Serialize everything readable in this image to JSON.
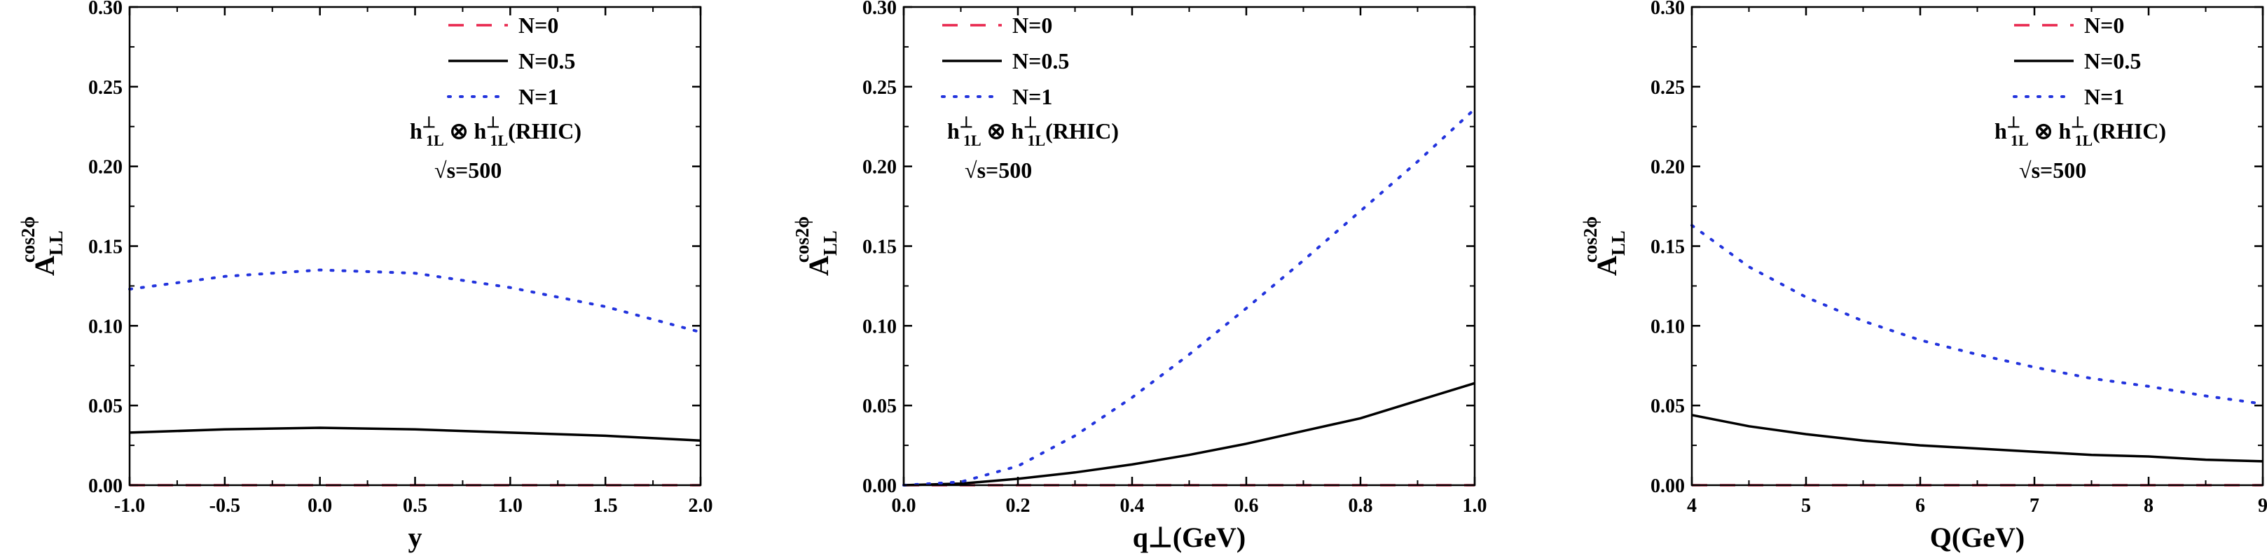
{
  "chart_data": [
    {
      "type": "line",
      "xlabel": "y",
      "ylabel": {
        "base": "A",
        "sub": "LL",
        "sup": "cos2ϕ"
      },
      "xlim": [
        -1.0,
        2.0
      ],
      "ylim": [
        0.0,
        0.3
      ],
      "xticks": [
        "-1.0",
        "-0.5",
        "0.0",
        "0.5",
        "1.0",
        "1.5",
        "2.0"
      ],
      "yticks": [
        "0.00",
        "0.05",
        "0.10",
        "0.15",
        "0.20",
        "0.25",
        "0.30"
      ],
      "legend_position": "top-right",
      "grid": false,
      "annotations": {
        "process": {
          "h": "h",
          "sub": "1L",
          "sup": "⊥",
          "otimes": "⊗",
          "suffix": "(RHIC)"
        },
        "energy": "√s=500"
      },
      "series": [
        {
          "name": "N=0",
          "style": "dash",
          "color": "#e8264d",
          "x": [
            -1.0,
            2.0
          ],
          "y": [
            0.0,
            0.0
          ]
        },
        {
          "name": "N=0.5",
          "style": "solid",
          "color": "#000000",
          "x": [
            -1.0,
            -0.5,
            0.0,
            0.5,
            1.0,
            1.5,
            2.0
          ],
          "y": [
            0.033,
            0.035,
            0.036,
            0.035,
            0.033,
            0.031,
            0.028
          ]
        },
        {
          "name": "N=1",
          "style": "dot",
          "color": "#2233dd",
          "x": [
            -1.0,
            -0.5,
            0.0,
            0.5,
            1.0,
            1.5,
            2.0
          ],
          "y": [
            0.123,
            0.131,
            0.135,
            0.133,
            0.124,
            0.112,
            0.096
          ]
        }
      ]
    },
    {
      "type": "line",
      "xlabel": "q⊥(GeV)",
      "ylabel": {
        "base": "A",
        "sub": "LL",
        "sup": "cos2ϕ"
      },
      "xlim": [
        0.0,
        1.0
      ],
      "ylim": [
        0.0,
        0.3
      ],
      "xticks": [
        "0.0",
        "0.2",
        "0.4",
        "0.6",
        "0.8",
        "1.0"
      ],
      "yticks": [
        "0.00",
        "0.05",
        "0.10",
        "0.15",
        "0.20",
        "0.25",
        "0.30"
      ],
      "legend_position": "top-left",
      "grid": false,
      "annotations": {
        "process": {
          "h": "h",
          "sub": "1L",
          "sup": "⊥",
          "otimes": "⊗",
          "suffix": "(RHIC)"
        },
        "energy": "√s=500"
      },
      "series": [
        {
          "name": "N=0",
          "style": "dash",
          "color": "#e8264d",
          "x": [
            0.0,
            1.0
          ],
          "y": [
            0.0,
            0.0
          ]
        },
        {
          "name": "N=0.5",
          "style": "solid",
          "color": "#000000",
          "x": [
            0.0,
            0.1,
            0.2,
            0.3,
            0.4,
            0.5,
            0.6,
            0.7,
            0.8,
            0.9,
            1.0
          ],
          "y": [
            0.0,
            0.001,
            0.004,
            0.008,
            0.013,
            0.019,
            0.026,
            0.034,
            0.042,
            0.053,
            0.064
          ]
        },
        {
          "name": "N=1",
          "style": "dot",
          "color": "#2233dd",
          "x": [
            0.0,
            0.1,
            0.2,
            0.3,
            0.4,
            0.5,
            0.6,
            0.7,
            0.8,
            0.9,
            1.0
          ],
          "y": [
            0.0,
            0.002,
            0.012,
            0.031,
            0.055,
            0.082,
            0.111,
            0.141,
            0.172,
            0.203,
            0.236
          ]
        }
      ]
    },
    {
      "type": "line",
      "xlabel": "Q(GeV)",
      "ylabel": {
        "base": "A",
        "sub": "LL",
        "sup": "cos2ϕ"
      },
      "xlim": [
        4,
        9
      ],
      "ylim": [
        0.0,
        0.3
      ],
      "xticks": [
        "4",
        "5",
        "6",
        "7",
        "8",
        "9"
      ],
      "yticks": [
        "0.00",
        "0.05",
        "0.10",
        "0.15",
        "0.20",
        "0.25",
        "0.30"
      ],
      "legend_position": "top-right",
      "grid": false,
      "annotations": {
        "process": {
          "h": "h",
          "sub": "1L",
          "sup": "⊥",
          "otimes": "⊗",
          "suffix": "(RHIC)"
        },
        "energy": "√s=500"
      },
      "series": [
        {
          "name": "N=0",
          "style": "dash",
          "color": "#e8264d",
          "x": [
            4,
            9
          ],
          "y": [
            0.0,
            0.0
          ]
        },
        {
          "name": "N=0.5",
          "style": "solid",
          "color": "#000000",
          "x": [
            4,
            4.5,
            5,
            5.5,
            6,
            6.5,
            7,
            7.5,
            8,
            8.5,
            9
          ],
          "y": [
            0.044,
            0.037,
            0.032,
            0.028,
            0.025,
            0.023,
            0.021,
            0.019,
            0.018,
            0.016,
            0.015
          ]
        },
        {
          "name": "N=1",
          "style": "dot",
          "color": "#2233dd",
          "x": [
            4,
            4.5,
            5,
            5.5,
            6,
            6.5,
            7,
            7.5,
            8,
            8.5,
            9
          ],
          "y": [
            0.163,
            0.137,
            0.118,
            0.103,
            0.091,
            0.082,
            0.074,
            0.067,
            0.062,
            0.056,
            0.051
          ]
        }
      ]
    }
  ]
}
